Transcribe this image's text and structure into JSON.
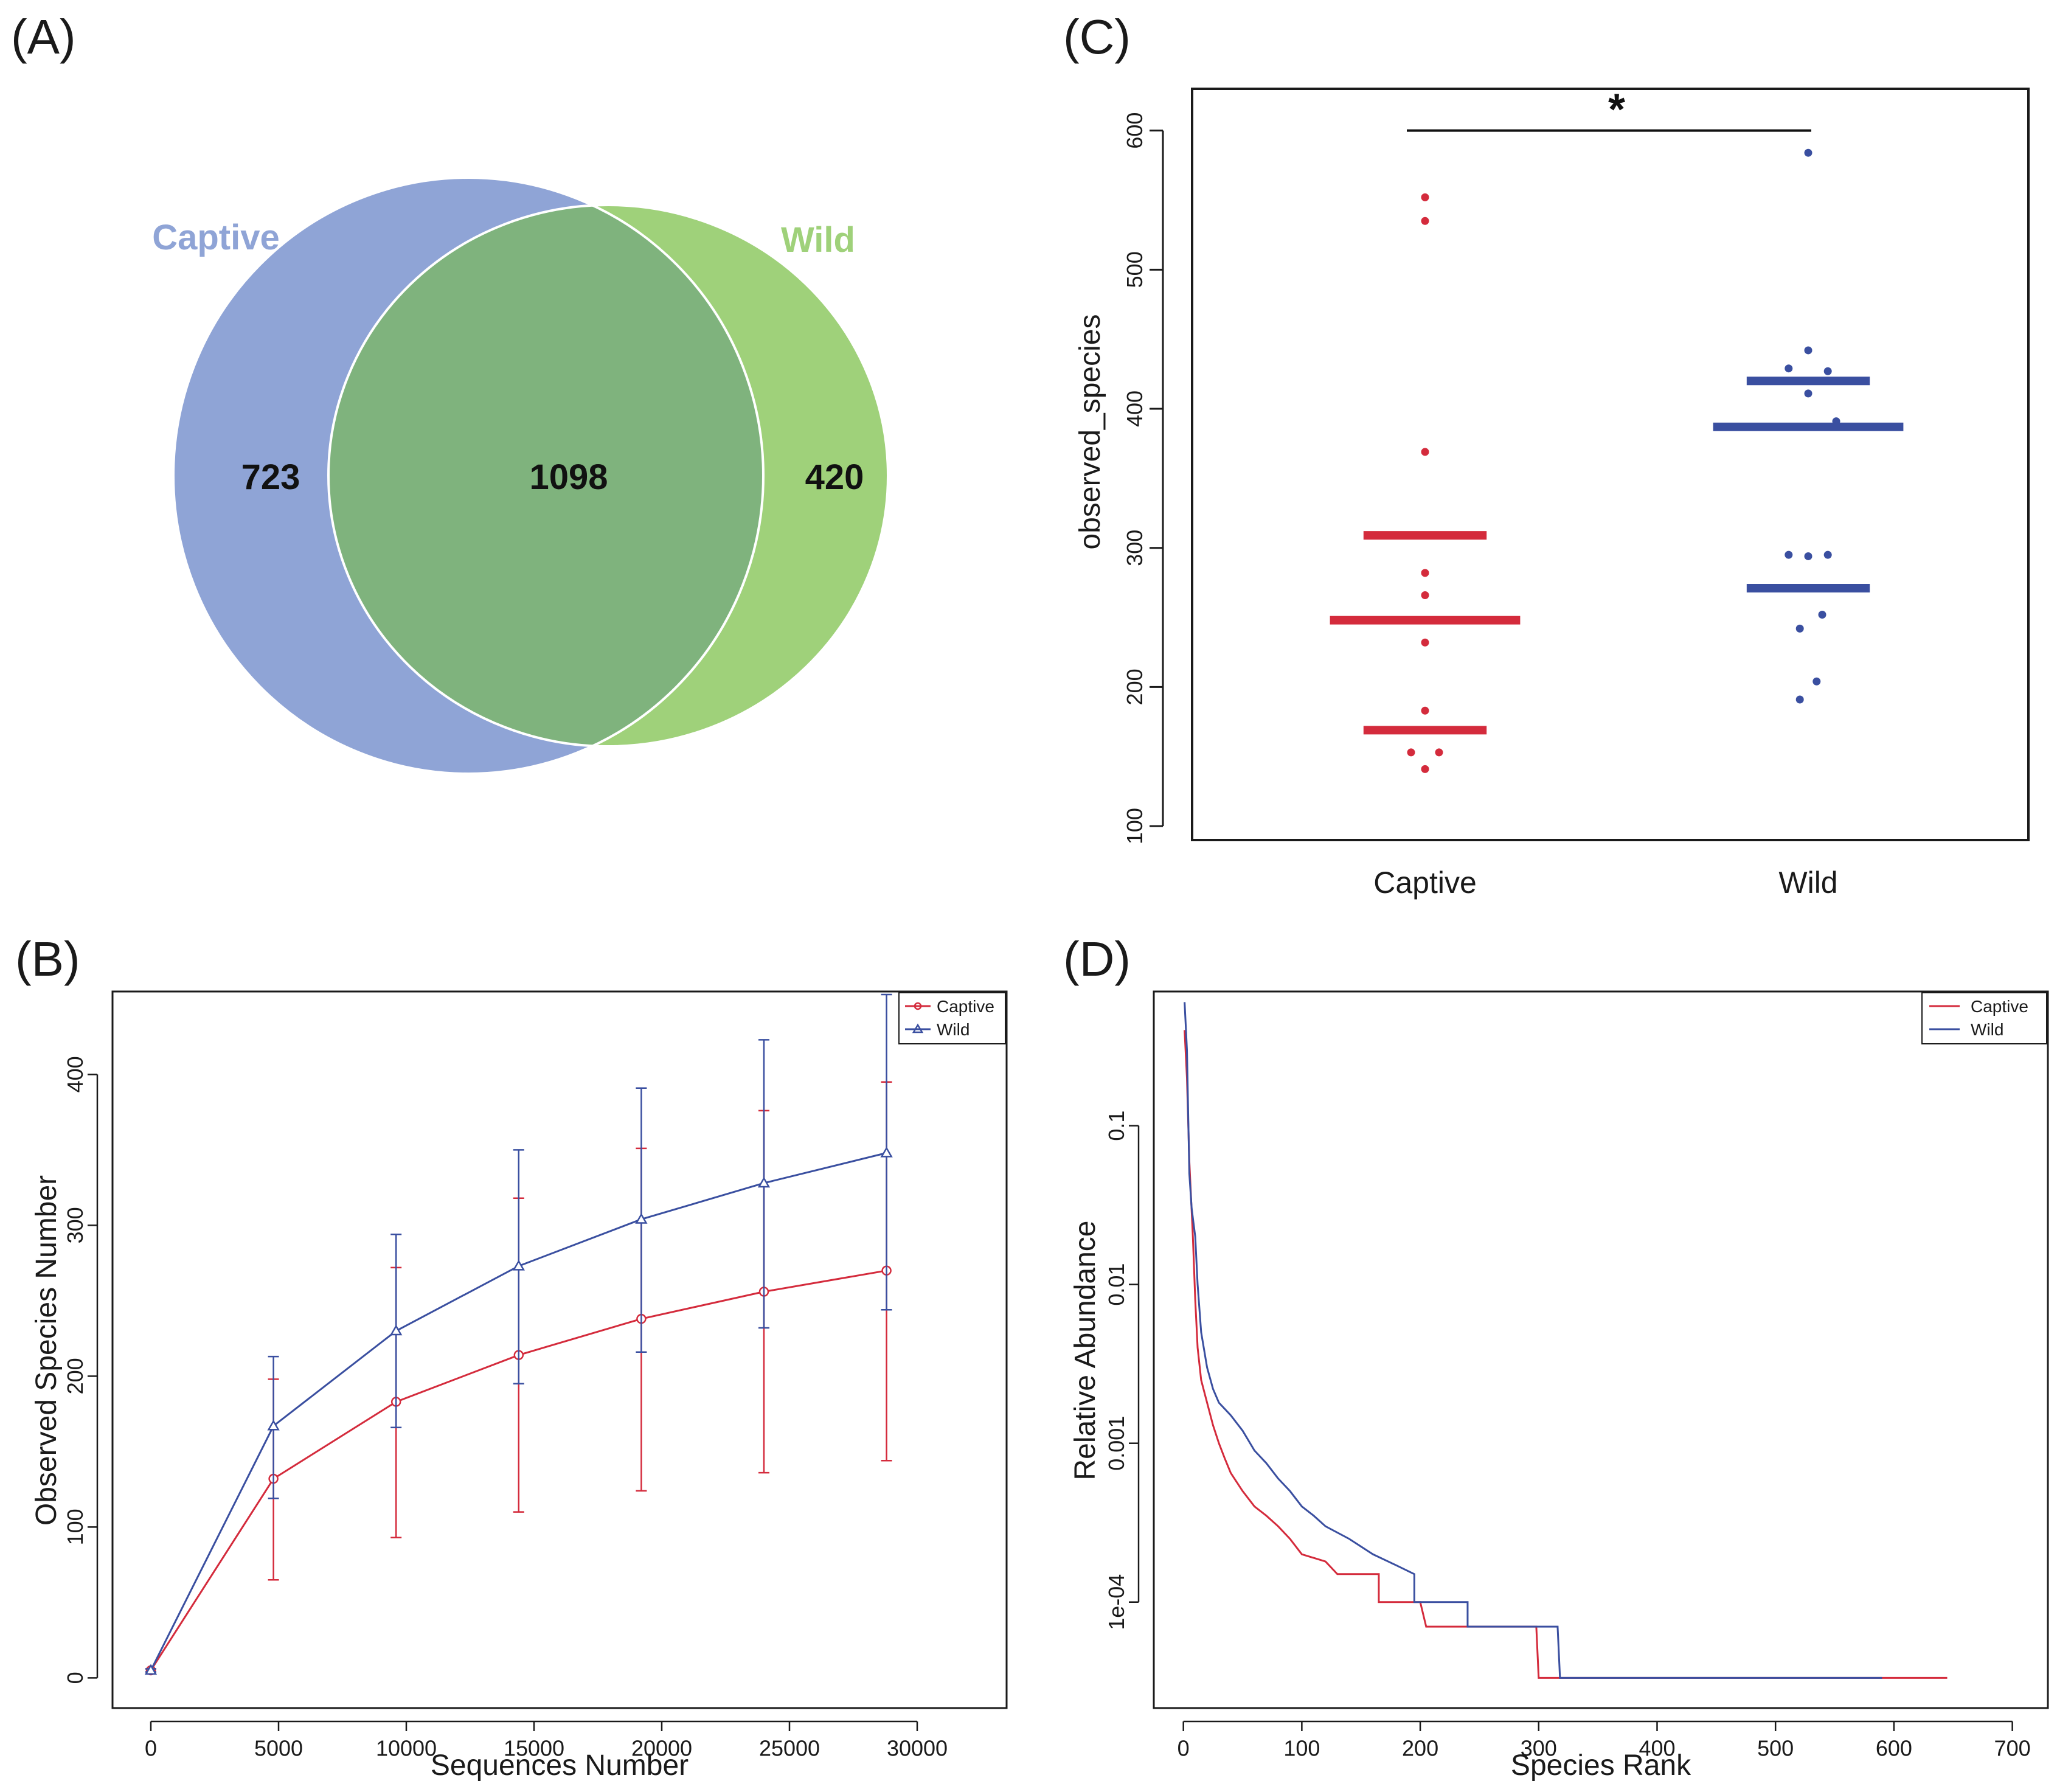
{
  "chart_data": [
    {
      "panel_label": "(A)",
      "type": "venn",
      "sets": [
        {
          "name": "Captive",
          "unique": 723,
          "color": "#8fa4d6"
        },
        {
          "name": "Wild",
          "unique": 420,
          "color": "#9fd17a"
        }
      ],
      "shared": 1098,
      "shared_color": "#7fb37d"
    },
    {
      "panel_label": "(B)",
      "type": "line",
      "xlabel": "Sequences Number",
      "ylabel": "Observed Species Number",
      "xlim": [
        -1500,
        33500
      ],
      "ylim": [
        -20,
        455
      ],
      "x_ticks": [
        "0",
        "5000",
        "10000",
        "15000",
        "20000",
        "25000",
        "30000"
      ],
      "y_ticks": [
        "0",
        "100",
        "200",
        "300",
        "400"
      ],
      "legend": [
        "Captive",
        "Wild"
      ],
      "legend_position": "top-right",
      "x": [
        0,
        4800,
        9600,
        14400,
        19200,
        24000,
        28800
      ],
      "series": [
        {
          "name": "Captive",
          "color": "#d42b3c",
          "marker": "circle",
          "values": [
            5,
            132,
            183,
            214,
            238,
            256,
            270
          ],
          "err_low": [
            4,
            65,
            93,
            110,
            124,
            136,
            144
          ],
          "err_high": [
            6,
            198,
            272,
            318,
            351,
            376,
            395
          ]
        },
        {
          "name": "Wild",
          "color": "#3a4fa0",
          "marker": "triangle",
          "values": [
            5,
            167,
            230,
            273,
            304,
            328,
            348
          ],
          "err_low": [
            4,
            119,
            166,
            195,
            216,
            232,
            244
          ],
          "err_high": [
            6,
            213,
            294,
            350,
            391,
            423,
            453
          ]
        }
      ]
    },
    {
      "panel_label": "(C)",
      "type": "scatter",
      "ylabel": "observed_species",
      "ylim": [
        90,
        630
      ],
      "y_ticks": [
        "100",
        "200",
        "300",
        "400",
        "500",
        "600"
      ],
      "categories": [
        "Captive",
        "Wild"
      ],
      "significance": "*",
      "groups": [
        {
          "name": "Captive",
          "color": "#d42b3c",
          "points": [
            [
              0,
              552
            ],
            [
              0,
              535
            ],
            [
              0,
              369
            ],
            [
              0,
              282
            ],
            [
              0,
              266
            ],
            [
              0,
              232
            ],
            [
              0,
              183
            ],
            [
              -0.05,
              153
            ],
            [
              0.05,
              153
            ],
            [
              0,
              141
            ]
          ],
          "lines": [
            {
              "y": 309,
              "half_width": 0.22
            },
            {
              "y": 248,
              "half_width": 0.34
            },
            {
              "y": 169,
              "half_width": 0.22
            }
          ]
        },
        {
          "name": "Wild",
          "color": "#3a4fa0",
          "points": [
            [
              0,
              584
            ],
            [
              0,
              442
            ],
            [
              -0.07,
              429
            ],
            [
              0.07,
              427
            ],
            [
              0,
              411
            ],
            [
              0.1,
              391
            ],
            [
              -0.07,
              295
            ],
            [
              0,
              294
            ],
            [
              0.07,
              295
            ],
            [
              0.05,
              252
            ],
            [
              -0.03,
              242
            ],
            [
              0.03,
              204
            ],
            [
              -0.03,
              191
            ]
          ],
          "lines": [
            {
              "y": 420,
              "half_width": 0.22
            },
            {
              "y": 387,
              "half_width": 0.34
            },
            {
              "y": 271,
              "half_width": 0.22
            }
          ]
        }
      ]
    },
    {
      "panel_label": "(D)",
      "type": "line",
      "xlabel": "Species Rank",
      "ylabel": "Relative Abundance",
      "y_scale": "log",
      "xlim": [
        -25,
        730
      ],
      "x_ticks": [
        "0",
        "100",
        "200",
        "300",
        "400",
        "500",
        "600",
        "700"
      ],
      "y_ticks": [
        "1e-04",
        "0.001",
        "0.01",
        "0.1"
      ],
      "legend": [
        "Captive",
        "Wild"
      ],
      "legend_position": "top-right",
      "series": [
        {
          "name": "Captive",
          "color": "#d42b3c",
          "points": [
            [
              1,
              0.4
            ],
            [
              3,
              0.2
            ],
            [
              5,
              0.06
            ],
            [
              8,
              0.02
            ],
            [
              10,
              0.008
            ],
            [
              12,
              0.004
            ],
            [
              15,
              0.0025
            ],
            [
              20,
              0.0018
            ],
            [
              25,
              0.0013
            ],
            [
              30,
              0.001
            ],
            [
              35,
              0.0008
            ],
            [
              40,
              0.00065
            ],
            [
              50,
              0.0005
            ],
            [
              60,
              0.0004
            ],
            [
              70,
              0.00035
            ],
            [
              80,
              0.0003
            ],
            [
              90,
              0.00025
            ],
            [
              100,
              0.0002
            ],
            [
              120,
              0.00018
            ],
            [
              130,
              0.00015
            ],
            [
              165,
              0.00015
            ],
            [
              165,
              0.0001
            ],
            [
              200,
              0.0001
            ],
            [
              205,
              7e-05
            ],
            [
              298,
              7e-05
            ],
            [
              300,
              3.33e-05
            ],
            [
              645,
              3.33e-05
            ]
          ]
        },
        {
          "name": "Wild",
          "color": "#3a4fa0",
          "points": [
            [
              1,
              0.6
            ],
            [
              3,
              0.3
            ],
            [
              5,
              0.05
            ],
            [
              7,
              0.03
            ],
            [
              10,
              0.02
            ],
            [
              12,
              0.01
            ],
            [
              15,
              0.005
            ],
            [
              20,
              0.003
            ],
            [
              25,
              0.0022
            ],
            [
              30,
              0.0018
            ],
            [
              40,
              0.0015
            ],
            [
              50,
              0.0012
            ],
            [
              60,
              0.0009
            ],
            [
              70,
              0.00075
            ],
            [
              80,
              0.0006
            ],
            [
              90,
              0.0005
            ],
            [
              100,
              0.0004
            ],
            [
              110,
              0.00035
            ],
            [
              120,
              0.0003
            ],
            [
              140,
              0.00025
            ],
            [
              160,
              0.0002
            ],
            [
              180,
              0.00017
            ],
            [
              195,
              0.00015
            ],
            [
              195,
              0.0001
            ],
            [
              240,
              0.0001
            ],
            [
              240,
              7e-05
            ],
            [
              316,
              7e-05
            ],
            [
              318,
              3.33e-05
            ],
            [
              590,
              3.33e-05
            ]
          ]
        }
      ]
    }
  ]
}
